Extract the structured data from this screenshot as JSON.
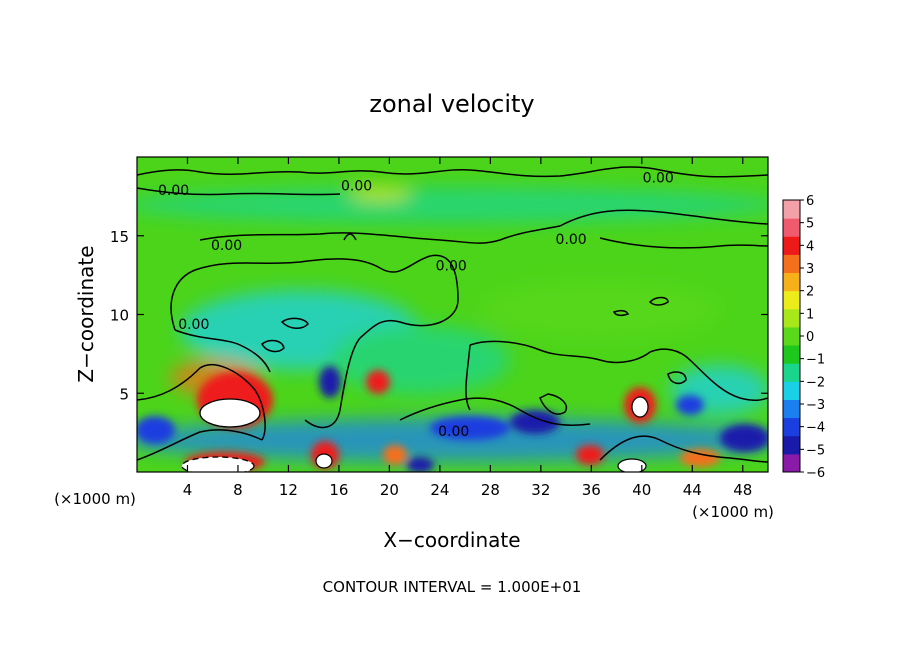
{
  "title": "zonal velocity",
  "x_axis": {
    "label": "X−coordinate",
    "unit_left": "(×1000 m)",
    "unit_right": "(×1000 m)"
  },
  "y_axis": {
    "label": "Z−coordinate"
  },
  "footer": "CONTOUR INTERVAL = 1.000E+01",
  "colors": {
    "background": "#ffffff",
    "field_base": "#4cd41a",
    "zero_contour": "#000000",
    "scale": [
      "#8a1aa8",
      "#1a1aaa",
      "#1a3ee0",
      "#1a80f0",
      "#1ad0e6",
      "#1ad58c",
      "#1cc81c",
      "#5ad81a",
      "#a8e81a",
      "#ecec1a",
      "#f5b01a",
      "#f5701a",
      "#ee1a1a",
      "#f05a6e",
      "#f4a0a8"
    ]
  },
  "chart_data": {
    "type": "heatmap",
    "title": "zonal velocity",
    "xlabel": "X−coordinate",
    "ylabel": "Z−coordinate",
    "xlim": [
      0,
      50
    ],
    "ylim": [
      0,
      20
    ],
    "x_ticks": [
      4,
      8,
      12,
      16,
      20,
      24,
      28,
      32,
      36,
      40,
      44,
      48
    ],
    "y_ticks": [
      5,
      10,
      15
    ],
    "colorbar": {
      "ticks": [
        -6,
        -5,
        -4,
        -3,
        -2,
        -1,
        0,
        1,
        2,
        3,
        4,
        5,
        6
      ],
      "range": [
        -6,
        6
      ]
    },
    "contour_labels": [
      {
        "text": "0.00",
        "x": 2.9,
        "z": 17.9
      },
      {
        "text": "0.00",
        "x": 17.4,
        "z": 18.2
      },
      {
        "text": "0.00",
        "x": 41.3,
        "z": 18.7
      },
      {
        "text": "0.00",
        "x": 7.1,
        "z": 14.4
      },
      {
        "text": "0.00",
        "x": 34.4,
        "z": 14.8
      },
      {
        "text": "0.00",
        "x": 24.9,
        "z": 13.1
      },
      {
        "text": "0.00",
        "x": 4.5,
        "z": 9.4
      },
      {
        "text": "0.00",
        "x": 25.1,
        "z": 2.6
      }
    ],
    "features": [
      {
        "x": 7.5,
        "z": 4.3,
        "value": 7,
        "note": "strong positive jet (white = above scale)"
      },
      {
        "x": 6.5,
        "z": 0.4,
        "value": 7
      },
      {
        "x": 39.6,
        "z": 4.0,
        "value": 6
      },
      {
        "x": 15.4,
        "z": 5.9,
        "value": -5
      },
      {
        "x": 18.8,
        "z": 5.9,
        "value": 5
      },
      {
        "x": 2.0,
        "z": 2.7,
        "value": -4
      },
      {
        "x": 27.0,
        "z": 2.7,
        "value": -4
      },
      {
        "x": 46.5,
        "z": 2.0,
        "value": -4
      },
      {
        "x": 15.0,
        "z": 1.0,
        "value": 6
      }
    ]
  }
}
